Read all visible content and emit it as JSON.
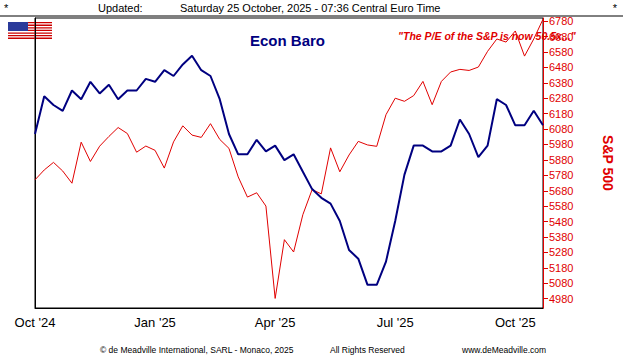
{
  "header": {
    "left_mark": "*",
    "label": "Updated:",
    "timestamp": "Saturday 25 October, 2025 - 07:36 Central Euro Time",
    "right_mark": "*"
  },
  "footer": [
    "© de Meadville International, SARL - Monaco, 2025",
    "All Rights Reserved",
    "www.deMeadville.com"
  ],
  "chart_data": {
    "type": "line",
    "title": "Econ Baro",
    "annotations": [
      "\"The P/E of the S&P is now 50.5x...\""
    ],
    "categories": [
      "Oct '24",
      null,
      null,
      null,
      null,
      null,
      null,
      null,
      null,
      null,
      null,
      null,
      null,
      "Jan '25",
      null,
      null,
      null,
      null,
      null,
      null,
      null,
      null,
      null,
      null,
      null,
      null,
      "Apr '25",
      null,
      null,
      null,
      null,
      null,
      null,
      null,
      null,
      null,
      null,
      null,
      null,
      "Jul '25",
      null,
      null,
      null,
      null,
      null,
      null,
      null,
      null,
      null,
      null,
      null,
      null,
      "Oct '25",
      null,
      null,
      null
    ],
    "series": [
      {
        "name": "S&P 500",
        "color": "#e00000",
        "axis": "y2",
        "values": [
          5751,
          5815,
          5864,
          5808,
          5729,
          5995,
          5870,
          5969,
          6032,
          6090,
          6051,
          5930,
          5970,
          5942,
          5827,
          5997,
          6101,
          6041,
          6026,
          6115,
          6013,
          5955,
          5770,
          5639,
          5667,
          5581,
          4982,
          5363,
          5283,
          5525,
          5687,
          5660,
          5958,
          5803,
          5912,
          6000,
          5977,
          5968,
          6173,
          6280,
          6260,
          6297,
          6389,
          6238,
          6389,
          6450,
          6467,
          6460,
          6482,
          6584,
          6664,
          6644,
          6716,
          6553,
          6664,
          6792
        ]
      },
      {
        "name": "Econ Baro",
        "color": "#000080",
        "axis": "y",
        "values": [
          60,
          73,
          70,
          68,
          75,
          72,
          78,
          74,
          77,
          72,
          75,
          75,
          79,
          78,
          82,
          80,
          84,
          87,
          82,
          80,
          72,
          60,
          53,
          53,
          58,
          54,
          56,
          51,
          53,
          47,
          41,
          38,
          36,
          30,
          20,
          17,
          8,
          8,
          16,
          30,
          46,
          56,
          56,
          54,
          54,
          56,
          65,
          60,
          52,
          56,
          72,
          70,
          63,
          63,
          68,
          63
        ]
      }
    ],
    "ylim": [
      0,
      100
    ],
    "yticks": [],
    "y2label": "S&P 500",
    "y2lim": [
      4920,
      6800
    ],
    "y2ticks": [
      4980,
      5080,
      5180,
      5280,
      5380,
      5480,
      5580,
      5680,
      5780,
      5880,
      5980,
      6080,
      6180,
      6280,
      6380,
      6480,
      6580,
      6680,
      6780
    ],
    "grid": false
  }
}
